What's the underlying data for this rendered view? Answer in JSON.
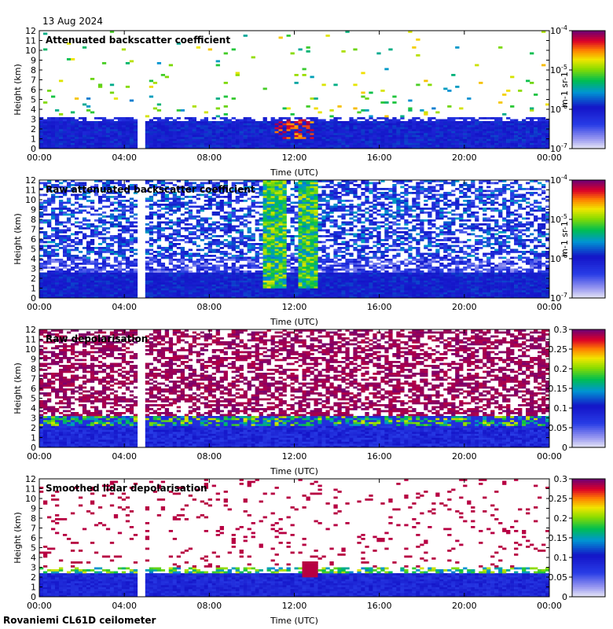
{
  "date_label": "13 Aug 2024",
  "footer_label": "Rovaniemi CL61D ceilometer",
  "chart_data": [
    {
      "type": "heatmap",
      "title": "Attenuated backscatter coefficient",
      "xlabel": "Time (UTC)",
      "ylabel": "Height (km)",
      "x_ticks": [
        "00:00",
        "04:00",
        "08:00",
        "12:00",
        "16:00",
        "20:00",
        "00:00"
      ],
      "y_ticks": [
        "0",
        "1",
        "2",
        "3",
        "4",
        "5",
        "6",
        "7",
        "8",
        "9",
        "10",
        "11",
        "12"
      ],
      "ylim": [
        0,
        12
      ],
      "colorbar": {
        "scale": "log",
        "ticks": [
          "10-4",
          "10-5",
          "10-6",
          "10-7"
        ],
        "unit": "m-1 sr-1"
      },
      "data_gap_utc": [
        "04:44",
        "04:58"
      ]
    },
    {
      "type": "heatmap",
      "title": "Raw attenuated backscatter coefficient",
      "xlabel": "Time (UTC)",
      "ylabel": "Height (km)",
      "x_ticks": [
        "00:00",
        "04:00",
        "08:00",
        "12:00",
        "16:00",
        "20:00",
        "00:00"
      ],
      "y_ticks": [
        "0",
        "1",
        "2",
        "3",
        "4",
        "5",
        "6",
        "7",
        "8",
        "9",
        "10",
        "11",
        "12"
      ],
      "ylim": [
        0,
        12
      ],
      "colorbar": {
        "scale": "log",
        "ticks": [
          "10-4",
          "10-5",
          "10-6",
          "10-7"
        ],
        "unit": "m-1 sr-1"
      },
      "data_gap_utc": [
        "04:44",
        "04:58"
      ]
    },
    {
      "type": "heatmap",
      "title": "Raw depolarisation",
      "xlabel": "Time (UTC)",
      "ylabel": "Height (km)",
      "x_ticks": [
        "00:00",
        "04:00",
        "08:00",
        "12:00",
        "16:00",
        "20:00",
        "00:00"
      ],
      "y_ticks": [
        "0",
        "1",
        "2",
        "3",
        "4",
        "5",
        "6",
        "7",
        "8",
        "9",
        "10",
        "11",
        "12"
      ],
      "ylim": [
        0,
        12
      ],
      "colorbar": {
        "scale": "linear",
        "ticks": [
          "0",
          "0.05",
          "0.1",
          "0.15",
          "0.2",
          "0.25",
          "0.3"
        ],
        "range": [
          0,
          0.3
        ]
      },
      "data_gap_utc": [
        "04:44",
        "04:58"
      ]
    },
    {
      "type": "heatmap",
      "title": "Smoothed lidar depolarisation",
      "xlabel": "Time (UTC)",
      "ylabel": "Height (km)",
      "x_ticks": [
        "00:00",
        "04:00",
        "08:00",
        "12:00",
        "16:00",
        "20:00",
        "00:00"
      ],
      "y_ticks": [
        "0",
        "1",
        "2",
        "3",
        "4",
        "5",
        "6",
        "7",
        "8",
        "9",
        "10",
        "11",
        "12"
      ],
      "ylim": [
        0,
        12
      ],
      "colorbar": {
        "scale": "linear",
        "ticks": [
          "0",
          "0.05",
          "0.1",
          "0.15",
          "0.2",
          "0.25",
          "0.3"
        ],
        "range": [
          0,
          0.3
        ]
      },
      "data_gap_utc": [
        "04:44",
        "04:58"
      ]
    }
  ]
}
